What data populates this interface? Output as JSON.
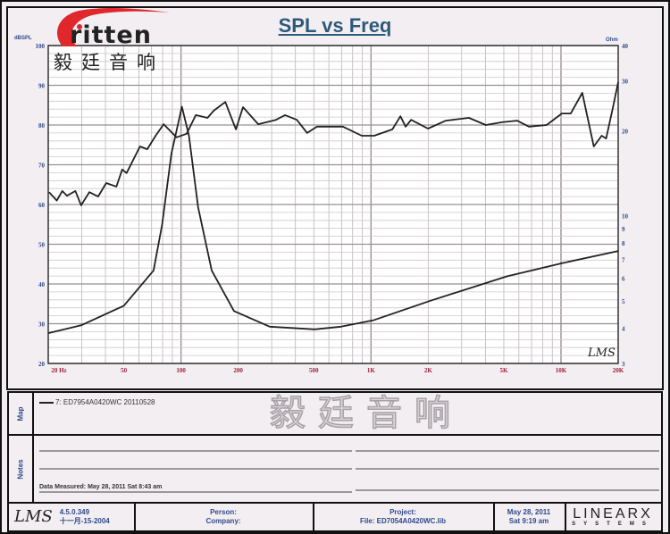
{
  "logo": {
    "brand": "Eritten",
    "brand_visible": "ritten",
    "chinese": "毅廷音响",
    "accent": "#e0282c"
  },
  "watermark": "毅廷音响",
  "chart_data": {
    "type": "line",
    "title": "SPL vs Freq",
    "xscale": "log",
    "xlim": [
      20,
      20000
    ],
    "ylim": [
      20,
      100
    ],
    "y2lim": [
      3,
      40
    ],
    "y2scale": "log",
    "grid": true,
    "x_ticks": [
      {
        "v": 20,
        "label": "20  Hz"
      },
      {
        "v": 50,
        "label": "50"
      },
      {
        "v": 100,
        "label": "100"
      },
      {
        "v": 200,
        "label": "200"
      },
      {
        "v": 500,
        "label": "500"
      },
      {
        "v": 1000,
        "label": "1K"
      },
      {
        "v": 2000,
        "label": "2K"
      },
      {
        "v": 5000,
        "label": "5K"
      },
      {
        "v": 10000,
        "label": "10K"
      },
      {
        "v": 20000,
        "label": "20K"
      }
    ],
    "y_ticks": [
      20,
      30,
      40,
      50,
      60,
      70,
      80,
      90,
      100
    ],
    "y_label": "dBSPL",
    "y2_label": "Ohm",
    "y2_ticks": [
      3,
      4,
      5,
      6,
      7,
      8,
      9,
      10,
      20,
      30,
      40
    ],
    "watermark_text": "LMS",
    "series": [
      {
        "role": "SPL (dB)",
        "color": "#222222",
        "points": [
          [
            20.2,
            63.1
          ],
          [
            22.2,
            61
          ],
          [
            23.7,
            63.4
          ],
          [
            25.1,
            62.2
          ],
          [
            27.8,
            63.4
          ],
          [
            29.8,
            59.8
          ],
          [
            32.9,
            63.1
          ],
          [
            36.6,
            62
          ],
          [
            40.4,
            65.4
          ],
          [
            45.7,
            64.5
          ],
          [
            49,
            68.8
          ],
          [
            51.7,
            67.9
          ],
          [
            60.8,
            74.6
          ],
          [
            66.4,
            73.9
          ],
          [
            73.5,
            77.3
          ],
          [
            81,
            80.2
          ],
          [
            94.7,
            76.9
          ],
          [
            107,
            77.8
          ],
          [
            119.6,
            82.5
          ],
          [
            137.9,
            81.8
          ],
          [
            148.6,
            83.6
          ],
          [
            171,
            85.8
          ],
          [
            194.5,
            78.9
          ],
          [
            212,
            84.5
          ],
          [
            255,
            80.2
          ],
          [
            316,
            81.3
          ],
          [
            353,
            82.5
          ],
          [
            407,
            81.3
          ],
          [
            461,
            78
          ],
          [
            520,
            79.6
          ],
          [
            624,
            79.6
          ],
          [
            711,
            79.6
          ],
          [
            894,
            77.3
          ],
          [
            1039,
            77.3
          ],
          [
            1295,
            78.9
          ],
          [
            1427,
            82.2
          ],
          [
            1522,
            79.6
          ],
          [
            1625,
            81.3
          ],
          [
            1995,
            79.1
          ],
          [
            2476,
            81.1
          ],
          [
            3276,
            81.8
          ],
          [
            4022,
            80
          ],
          [
            4890,
            80.7
          ],
          [
            5870,
            81.1
          ],
          [
            6780,
            79.6
          ],
          [
            8400,
            80
          ],
          [
            10100,
            82.9
          ],
          [
            11250,
            82.9
          ],
          [
            12940,
            88.1
          ],
          [
            14880,
            74.6
          ],
          [
            16370,
            77.3
          ],
          [
            17280,
            76.6
          ],
          [
            18830,
            84.7
          ],
          [
            20000,
            90.8
          ]
        ]
      },
      {
        "role": "Impedance (Ohm)",
        "color": "#222222",
        "points": [
          [
            20,
            3.84
          ],
          [
            30,
            4.1
          ],
          [
            50,
            4.8
          ],
          [
            71.7,
            6.4
          ],
          [
            79.5,
            9.3
          ],
          [
            89,
            16.6
          ],
          [
            101,
            24.3
          ],
          [
            110,
            19.2
          ],
          [
            123,
            10.7
          ],
          [
            145,
            6.4
          ],
          [
            190,
            4.6
          ],
          [
            293,
            4.05
          ],
          [
            505,
            3.96
          ],
          [
            696,
            4.05
          ],
          [
            1024,
            4.26
          ],
          [
            2053,
            5.0
          ],
          [
            5184,
            6.1
          ],
          [
            10240,
            6.8
          ],
          [
            20000,
            7.5
          ]
        ]
      }
    ]
  },
  "map": {
    "label": "Map",
    "legend_entry": "7: ED7954A0420WC  20110528"
  },
  "notes": {
    "label": "Notes",
    "measured": "Data Measured: May 28, 2011  Sat  8:43 am"
  },
  "footer": {
    "lms_logo": "LMS",
    "version": "4.5.0.349",
    "version_date": "十一月-15-2004",
    "person": "Person:",
    "company": "Company:",
    "project": "Project:",
    "file": "File: ED7054A0420WC.lib",
    "date": "May 28, 2011",
    "time": "Sat  9:19 am",
    "brand": "LINEARX",
    "brand_sub": "SYSTEMS"
  }
}
